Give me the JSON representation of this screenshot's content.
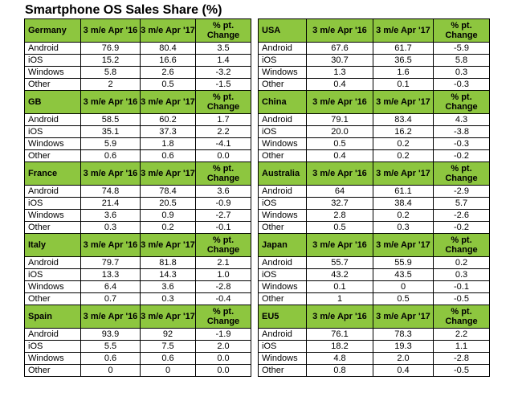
{
  "title": "Smartphone OS Sales Share (%)",
  "left": [
    {
      "region": "Germany",
      "h1": "3 m/e Apr '16",
      "h2": "3 m/e Apr '17",
      "h3": "% pt. Change",
      "rows": [
        {
          "os": "Android",
          "a": "76.9",
          "b": "80.4",
          "c": "3.5"
        },
        {
          "os": "iOS",
          "a": "15.2",
          "b": "16.6",
          "c": "1.4"
        },
        {
          "os": "Windows",
          "a": "5.8",
          "b": "2.6",
          "c": "-3.2"
        },
        {
          "os": "Other",
          "a": "2",
          "b": "0.5",
          "c": "-1.5"
        }
      ]
    },
    {
      "region": "GB",
      "h1": "3 m/e Apr '16",
      "h2": "3 m/e Apr '17",
      "h3": "% pt. Change",
      "rows": [
        {
          "os": "Android",
          "a": "58.5",
          "b": "60.2",
          "c": "1.7"
        },
        {
          "os": "iOS",
          "a": "35.1",
          "b": "37.3",
          "c": "2.2"
        },
        {
          "os": "Windows",
          "a": "5.9",
          "b": "1.8",
          "c": "-4.1"
        },
        {
          "os": "Other",
          "a": "0.6",
          "b": "0.6",
          "c": "0.0"
        }
      ]
    },
    {
      "region": "France",
      "h1": "3 m/e Apr '16",
      "h2": "3 m/e Apr '17",
      "h3": "% pt. Change",
      "rows": [
        {
          "os": "Android",
          "a": "74.8",
          "b": "78.4",
          "c": "3.6"
        },
        {
          "os": "iOS",
          "a": "21.4",
          "b": "20.5",
          "c": "-0.9"
        },
        {
          "os": "Windows",
          "a": "3.6",
          "b": "0.9",
          "c": "-2.7"
        },
        {
          "os": "Other",
          "a": "0.3",
          "b": "0.2",
          "c": "-0.1"
        }
      ]
    },
    {
      "region": "Italy",
      "h1": "3 m/e Apr '16",
      "h2": "3 m/e Apr '17",
      "h3": "% pt. Change",
      "rows": [
        {
          "os": "Android",
          "a": "79.7",
          "b": "81.8",
          "c": "2.1"
        },
        {
          "os": "iOS",
          "a": "13.3",
          "b": "14.3",
          "c": "1.0"
        },
        {
          "os": "Windows",
          "a": "6.4",
          "b": "3.6",
          "c": "-2.8"
        },
        {
          "os": "Other",
          "a": "0.7",
          "b": "0.3",
          "c": "-0.4"
        }
      ]
    },
    {
      "region": "Spain",
      "h1": "3 m/e Apr '16",
      "h2": "3 m/e Apr '17",
      "h3": "% pt. Change",
      "rows": [
        {
          "os": "Android",
          "a": "93.9",
          "b": "92",
          "c": "-1.9"
        },
        {
          "os": "iOS",
          "a": "5.5",
          "b": "7.5",
          "c": "2.0"
        },
        {
          "os": "Windows",
          "a": "0.6",
          "b": "0.6",
          "c": "0.0"
        },
        {
          "os": "Other",
          "a": "0",
          "b": "0",
          "c": "0.0"
        }
      ]
    }
  ],
  "right": [
    {
      "region": "USA",
      "h1": "3 m/e Apr '16",
      "h2": "3 m/e Apr '17",
      "h3": "% pt. Change",
      "rows": [
        {
          "os": "Android",
          "a": "67.6",
          "b": "61.7",
          "c": "-5.9"
        },
        {
          "os": "iOS",
          "a": "30.7",
          "b": "36.5",
          "c": "5.8"
        },
        {
          "os": "Windows",
          "a": "1.3",
          "b": "1.6",
          "c": "0.3"
        },
        {
          "os": "Other",
          "a": "0.4",
          "b": "0.1",
          "c": "-0.3"
        }
      ]
    },
    {
      "region": "China",
      "h1": "3 m/e Apr '16",
      "h2": "3 m/e Apr '17",
      "h3": "% pt. Change",
      "rows": [
        {
          "os": "Android",
          "a": "79.1",
          "b": "83.4",
          "c": "4.3"
        },
        {
          "os": "iOS",
          "a": "20.0",
          "b": "16.2",
          "c": "-3.8"
        },
        {
          "os": "Windows",
          "a": "0.5",
          "b": "0.2",
          "c": "-0.3"
        },
        {
          "os": "Other",
          "a": "0.4",
          "b": "0.2",
          "c": "-0.2"
        }
      ]
    },
    {
      "region": "Australia",
      "h1": "3 m/e Apr '16",
      "h2": "3 m/e Apr '17",
      "h3": "% pt. Change",
      "rows": [
        {
          "os": "Android",
          "a": "64",
          "b": "61.1",
          "c": "-2.9"
        },
        {
          "os": "iOS",
          "a": "32.7",
          "b": "38.4",
          "c": "5.7"
        },
        {
          "os": "Windows",
          "a": "2.8",
          "b": "0.2",
          "c": "-2.6"
        },
        {
          "os": "Other",
          "a": "0.5",
          "b": "0.3",
          "c": "-0.2"
        }
      ]
    },
    {
      "region": "Japan",
      "h1": "3 m/e Apr '16",
      "h2": "3 m/e Apr '17",
      "h3": "% pt. Change",
      "rows": [
        {
          "os": "Android",
          "a": "55.7",
          "b": "55.9",
          "c": "0.2"
        },
        {
          "os": "iOS",
          "a": "43.2",
          "b": "43.5",
          "c": "0.3"
        },
        {
          "os": "Windows",
          "a": "0.1",
          "b": "0",
          "c": "-0.1"
        },
        {
          "os": "Other",
          "a": "1",
          "b": "0.5",
          "c": "-0.5"
        }
      ]
    },
    {
      "region": "EU5",
      "h1": "3 m/e Apr '16",
      "h2": "3 m/e Apr '17",
      "h3": "% pt. Change",
      "rows": [
        {
          "os": "Android",
          "a": "76.1",
          "b": "78.3",
          "c": "2.2"
        },
        {
          "os": "iOS",
          "a": "18.2",
          "b": "19.3",
          "c": "1.1"
        },
        {
          "os": "Windows",
          "a": "4.8",
          "b": "2.0",
          "c": "-2.8"
        },
        {
          "os": "Other",
          "a": "0.8",
          "b": "0.4",
          "c": "-0.5"
        }
      ]
    }
  ],
  "colors": {
    "header_bg": "#8dc63f",
    "border": "#000000"
  }
}
